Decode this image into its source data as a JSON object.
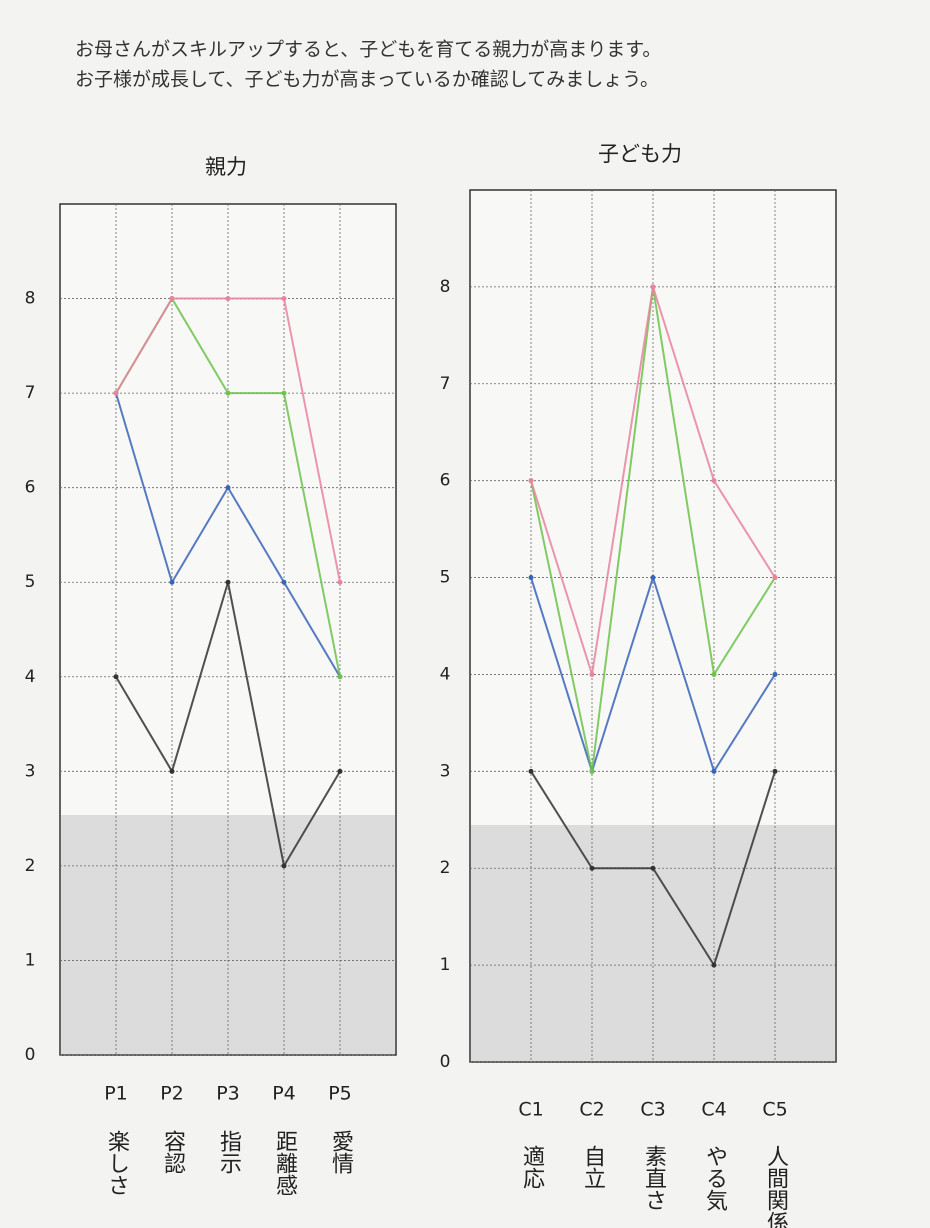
{
  "intro": [
    "お母さんがスキルアップすると、子どもを育てる親力が高まります。",
    "お子様が成長して、子ども力が高まっているか確認してみましょう。"
  ],
  "chart_data": [
    {
      "type": "line",
      "title": "親力",
      "categories": [
        "P1",
        "P2",
        "P3",
        "P4",
        "P5"
      ],
      "sublabels": [
        "楽しさ",
        "容認",
        "指示",
        "距離感",
        "愛情"
      ],
      "series": [
        {
          "color": "#333333",
          "values": [
            4,
            3,
            5,
            2,
            3
          ]
        },
        {
          "color": "#3a64b8",
          "values": [
            7,
            5,
            6,
            5,
            4
          ]
        },
        {
          "color": "#6cc24a",
          "values": [
            7,
            8,
            7,
            7,
            4
          ]
        },
        {
          "color": "#e8849f",
          "values": [
            7,
            8,
            8,
            8,
            5
          ]
        }
      ],
      "ylim": [
        0,
        9
      ],
      "yticks": [
        0,
        1,
        2,
        3,
        4,
        5,
        6,
        7,
        8
      ],
      "grid": true
    },
    {
      "type": "line",
      "title": "子ども力",
      "categories": [
        "C1",
        "C2",
        "C3",
        "C4",
        "C5"
      ],
      "sublabels": [
        "適応",
        "自立",
        "素直さ",
        "やる気",
        "人間関係"
      ],
      "series": [
        {
          "color": "#333333",
          "values": [
            3,
            2,
            2,
            1,
            3
          ]
        },
        {
          "color": "#3a64b8",
          "values": [
            5,
            3,
            5,
            3,
            4
          ]
        },
        {
          "color": "#6cc24a",
          "values": [
            6,
            3,
            8,
            4,
            5
          ]
        },
        {
          "color": "#e8849f",
          "values": [
            6,
            4,
            8,
            6,
            5
          ]
        }
      ],
      "ylim": [
        0,
        9
      ],
      "yticks": [
        0,
        1,
        2,
        3,
        4,
        5,
        6,
        7,
        8
      ],
      "grid": true
    }
  ]
}
